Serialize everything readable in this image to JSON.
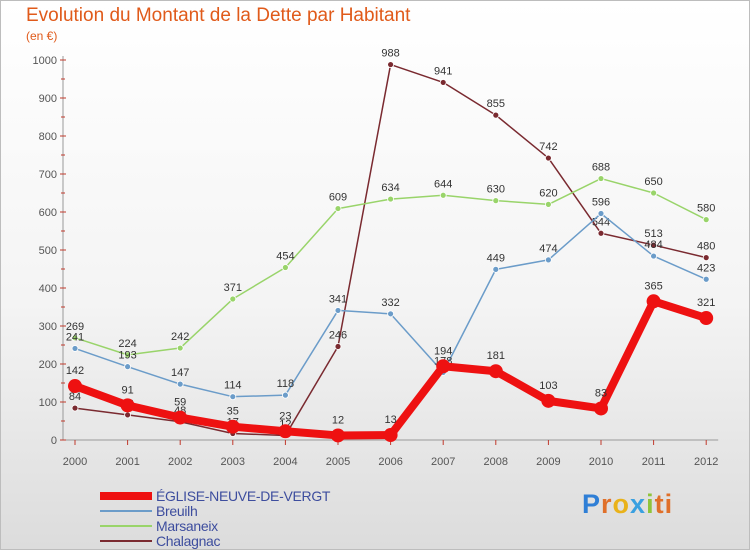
{
  "title": "Evolution du Montant de la Dette par Habitant",
  "unit": "(en €)",
  "logo": {
    "brand": "Proxiti",
    "letters": [
      "P",
      "r",
      "o",
      "x",
      "i",
      "ti"
    ]
  },
  "colors": {
    "title": "#e05a1a",
    "axis": "#555555",
    "legend_text": "#3d4d9e"
  },
  "chart_data": {
    "type": "line",
    "title": "Evolution du Montant de la Dette par Habitant",
    "ylabel": "(en €)",
    "xlabel": "",
    "x": [
      "2000",
      "2001",
      "2002",
      "2003",
      "2004",
      "2005",
      "2006",
      "2007",
      "2008",
      "2009",
      "2010",
      "2011",
      "2012"
    ],
    "ylim": [
      0,
      1000
    ],
    "yticks": [
      0,
      100,
      200,
      300,
      400,
      500,
      600,
      700,
      800,
      900,
      1000
    ],
    "grid": false,
    "legend": "bottom-left",
    "series": [
      {
        "name": "ÉGLISE-NEUVE-DE-VERGT",
        "color": "#ee1111",
        "width": 8,
        "values": [
          142,
          91,
          59,
          35,
          23,
          12,
          13,
          194,
          181,
          103,
          83,
          365,
          321
        ]
      },
      {
        "name": "Breuilh",
        "color": "#6b9cc9",
        "width": 1.5,
        "values": [
          241,
          193,
          147,
          114,
          118,
          341,
          332,
          178,
          449,
          474,
          596,
          484,
          423
        ]
      },
      {
        "name": "Marsaneix",
        "color": "#99d46a",
        "width": 1.5,
        "values": [
          269,
          224,
          242,
          371,
          454,
          609,
          634,
          644,
          630,
          620,
          688,
          650,
          580
        ]
      },
      {
        "name": "Chalagnac",
        "color": "#7a2a30",
        "width": 1.5,
        "values": [
          84,
          66,
          48,
          17,
          12,
          246,
          988,
          941,
          855,
          742,
          544,
          513,
          480
        ]
      }
    ]
  }
}
